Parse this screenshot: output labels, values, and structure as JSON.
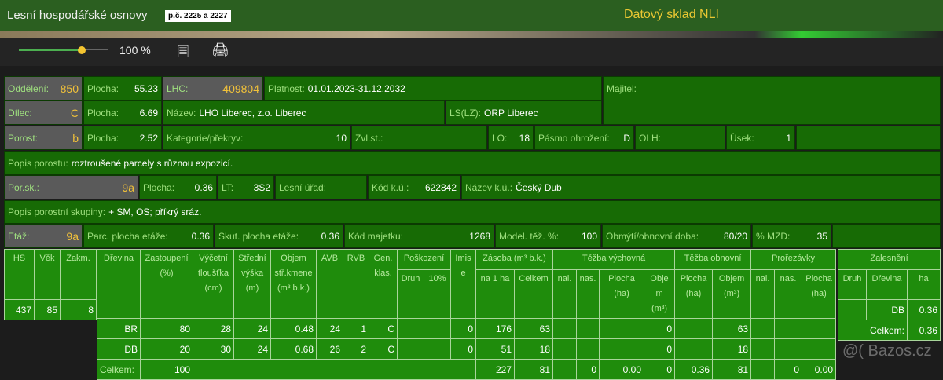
{
  "header": {
    "title": "Lesní hospodářské osnovy",
    "tag": "p.č. 2225 a 2227",
    "right_title": "Datový sklad NLI"
  },
  "toolbar": {
    "zoom": "100 %",
    "zoom_slider_value": 100,
    "icons": [
      "notes-icon",
      "print-icon"
    ]
  },
  "info": {
    "oddeleni": {
      "label": "Oddělení:",
      "value": "850"
    },
    "plocha1": {
      "label": "Plocha:",
      "value": "55.23"
    },
    "lhc": {
      "label": "LHC:",
      "value": "409804"
    },
    "platnost": {
      "label": "Platnost:",
      "value": "01.01.2023-31.12.2032"
    },
    "majitel": {
      "label": "Majitel:"
    },
    "dilec": {
      "label": "Dílec:",
      "value": "C"
    },
    "plocha2": {
      "label": "Plocha:",
      "value": "6.69"
    },
    "nazev": {
      "label": "Název:",
      "value": "LHO Liberec, z.o. Liberec"
    },
    "ls": {
      "label": "LS(LZ):",
      "value": "ORP Liberec"
    },
    "porost": {
      "label": "Porost:",
      "value": "b"
    },
    "plocha3": {
      "label": "Plocha:",
      "value": "2.52"
    },
    "kategorie": {
      "label": "Kategorie/překryv:",
      "value": "10"
    },
    "zvlst": {
      "label": "Zvl.st.:"
    },
    "lo": {
      "label": "LO:",
      "value": "18"
    },
    "pasmo": {
      "label": "Pásmo ohrožení:",
      "value": "D"
    },
    "olh": {
      "label": "OLH:"
    },
    "usek": {
      "label": "Úsek:",
      "value": "1"
    },
    "popis_porostu": {
      "label": "Popis porostu:",
      "value": "roztroušené parcely s různou expozicí."
    },
    "porsk": {
      "label": "Por.sk.:",
      "value": "9a"
    },
    "plocha4": {
      "label": "Plocha:",
      "value": "0.36"
    },
    "lt": {
      "label": "LT:",
      "value": "3S2"
    },
    "lesni_urad": {
      "label": "Lesní úřad:"
    },
    "kod_ku": {
      "label": "Kód k.ú.:",
      "value": "622842"
    },
    "nazev_ku": {
      "label": "Název k.ú.:",
      "value": "Český Dub"
    },
    "popis_skupiny": {
      "label": "Popis porostní skupiny:",
      "value": "+ SM, OS; příkrý sráz."
    },
    "etaz": {
      "label": "Etáž:",
      "value": "9a"
    },
    "parc": {
      "label": "Parc. plocha etáže:",
      "value": "0.36"
    },
    "skut": {
      "label": "Skut. plocha etáže:",
      "value": "0.36"
    },
    "kod_majetku": {
      "label": "Kód majetku:",
      "value": "1268"
    },
    "model": {
      "label": "Model. těž. %:",
      "value": "100"
    },
    "obmyti": {
      "label": "Obmýtí/obnovní doba:",
      "value": "80/20"
    },
    "mzd": {
      "label": "% MZD:",
      "value": "35"
    }
  },
  "left_table": {
    "headers": [
      "HS",
      "Věk",
      "Zakm."
    ],
    "row": [
      "437",
      "85",
      "8"
    ]
  },
  "main_table": {
    "headers": {
      "drevina": "Dřevina",
      "zastoupeni": "Zastoupení (%)",
      "vycetni": "Výčetní tloušťka (cm)",
      "stredni": "Střední výška (m)",
      "objem": "Objem stř.kmene (m³ b.k.)",
      "avb": "AVB",
      "rvb": "RVB",
      "gen": "Gen. klas.",
      "poskozeni": "Poškození",
      "druh": "Druh",
      "p10": "10%",
      "imise": "Imise",
      "zasoba": "Zásoba (m³ b.k.)",
      "na1ha": "na 1 ha",
      "celkem": "Celkem",
      "tezba_vych": "Těžba výchovná",
      "nal": "nal.",
      "nas": "nas.",
      "plocha": "Plocha (ha)",
      "objem_m3": "Objem (m³)",
      "tezba_obn": "Těžba obnovní",
      "prorezavky": "Prořezávky"
    },
    "rows": [
      [
        "BR",
        "80",
        "28",
        "24",
        "0.48",
        "24",
        "1",
        "C",
        "",
        "",
        "0",
        "176",
        "63",
        "",
        "",
        "",
        "0",
        "",
        "63",
        "",
        "",
        ""
      ],
      [
        "DB",
        "20",
        "30",
        "24",
        "0.68",
        "26",
        "2",
        "C",
        "",
        "",
        "0",
        "51",
        "18",
        "",
        "",
        "",
        "0",
        "",
        "18",
        "",
        "",
        ""
      ]
    ],
    "total": {
      "label": "Celkem:",
      "zastoupeni": "100",
      "na1ha": "227",
      "celkem": "81",
      "tv_nal": "",
      "tv_nas": "0",
      "tv_plocha": "0.00",
      "tv_objem": "0",
      "to_plocha": "0.36",
      "to_objem": "81",
      "pr_nal": "",
      "pr_nas": "0",
      "pr_plocha": "0.00"
    }
  },
  "right_table": {
    "title": "Zalesnění",
    "headers": [
      "Druh",
      "Dřevina",
      "ha"
    ],
    "row": [
      "",
      "DB",
      "0.36"
    ],
    "total_label": "Celkem:",
    "total": "0.36"
  },
  "watermark": "@( Bazos.cz",
  "colors": {
    "header": "#2b5f20",
    "cell": "#176b05",
    "table": "#1f8c0c",
    "gray": "#5a5a5a",
    "accent": "#f2c23a"
  }
}
